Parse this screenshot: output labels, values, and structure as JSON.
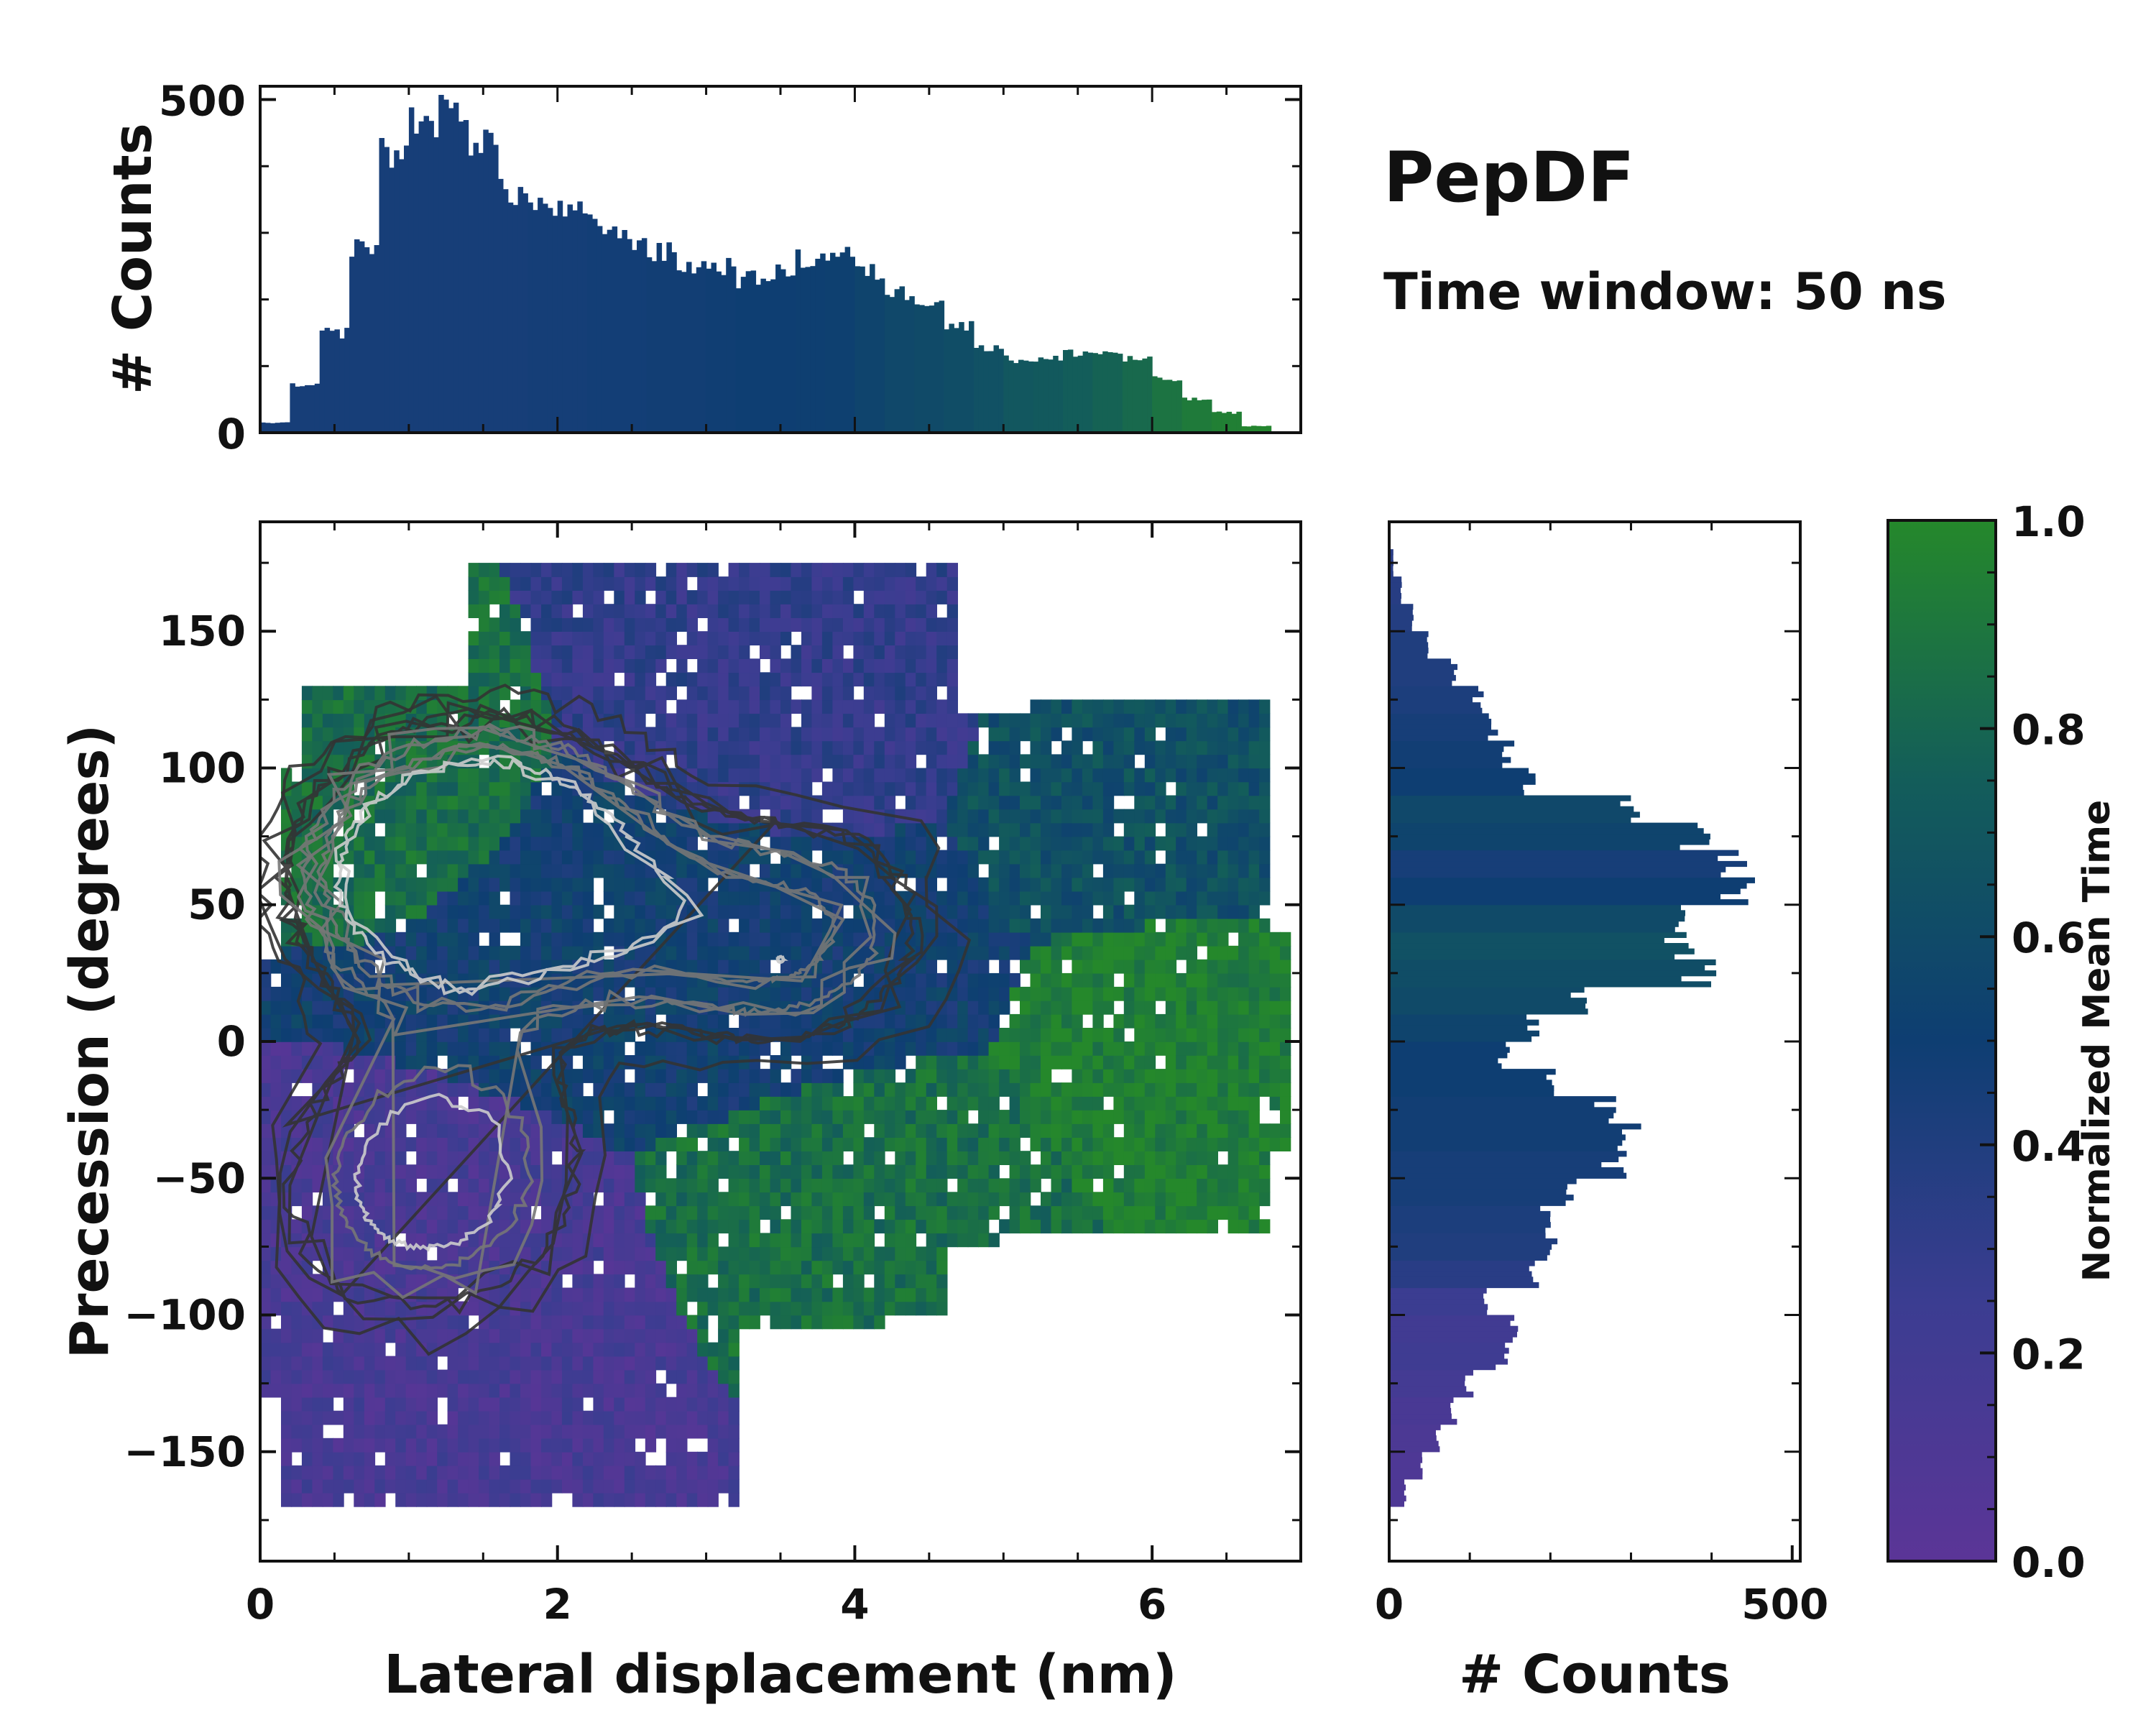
{
  "title": "PepDF",
  "subtitle": "Time window: 50 ns",
  "colors": {
    "cmap_low": "#5b3597",
    "cmap_mid_low": "#3b3d91",
    "cmap_mid": "#0e3e72",
    "cmap_mid_high": "#135d5a",
    "cmap_high": "#25882b",
    "contour_outer": "#000000",
    "contour_inner": "#cccccc"
  },
  "chart_data": [
    {
      "id": "main_heatmap",
      "type": "heatmap",
      "xlabel": "Lateral displacement (nm)",
      "ylabel": "Precession (degrees)",
      "xlim": [
        0,
        7
      ],
      "ylim": [
        -190,
        190
      ],
      "x_ticks": [
        0,
        2,
        4,
        6
      ],
      "x_tick_labels": [
        "0",
        "2",
        "4",
        "6"
      ],
      "y_ticks": [
        -150,
        -100,
        -50,
        0,
        50,
        100,
        150
      ],
      "y_tick_labels": [
        "−150",
        "−100",
        "−50",
        "0",
        "50",
        "100",
        "150"
      ],
      "density_peaks": [
        {
          "x": 1.0,
          "y": 60,
          "weight": 1.0
        },
        {
          "x": 1.5,
          "y": 60,
          "weight": 0.9
        },
        {
          "x": 1.8,
          "y": 75,
          "weight": 0.7
        },
        {
          "x": 1.3,
          "y": -40,
          "weight": 0.85
        },
        {
          "x": 1.0,
          "y": -60,
          "weight": 0.8
        },
        {
          "x": 2.7,
          "y": 45,
          "weight": 0.6
        },
        {
          "x": 3.5,
          "y": 30,
          "weight": 0.5
        },
        {
          "x": 4.0,
          "y": 50,
          "weight": 0.45
        }
      ],
      "regions": [
        {
          "name": "upper-left green",
          "x": [
            0.2,
            1.5
          ],
          "y": [
            60,
            130
          ],
          "normalized_time": 0.85
        },
        {
          "name": "central blue",
          "x": [
            1.0,
            4.8
          ],
          "y": [
            -20,
            80
          ],
          "normalized_time": 0.5
        },
        {
          "name": "top purple",
          "x": [
            2.5,
            4.5
          ],
          "y": [
            80,
            170
          ],
          "normalized_time": 0.3
        },
        {
          "name": "lower-left purple",
          "x": [
            0.0,
            2.5
          ],
          "y": [
            -170,
            -30
          ],
          "normalized_time": 0.15
        },
        {
          "name": "lower-middle green",
          "x": [
            2.8,
            5.5
          ],
          "y": [
            -100,
            -20
          ],
          "normalized_time": 0.85
        },
        {
          "name": "right green",
          "x": [
            5.3,
            6.9
          ],
          "y": [
            -60,
            40
          ],
          "normalized_time": 0.95
        },
        {
          "name": "upper-right teal",
          "x": [
            5.0,
            6.8
          ],
          "y": [
            50,
            120
          ],
          "normalized_time": 0.65
        }
      ]
    },
    {
      "id": "top_histogram",
      "type": "bar",
      "xlabel": "",
      "ylabel": "# Counts",
      "xlim": [
        0,
        7
      ],
      "ylim": [
        0,
        520
      ],
      "y_ticks": [
        0,
        500
      ],
      "y_tick_labels": [
        "0",
        "500"
      ],
      "x": [
        0.1,
        0.3,
        0.5,
        0.7,
        0.9,
        1.1,
        1.3,
        1.5,
        1.7,
        1.9,
        2.1,
        2.3,
        2.5,
        2.7,
        2.9,
        3.1,
        3.3,
        3.5,
        3.7,
        3.9,
        4.1,
        4.3,
        4.5,
        4.7,
        4.9,
        5.1,
        5.3,
        5.5,
        5.7,
        5.9,
        6.1,
        6.3,
        6.5,
        6.7
      ],
      "values": [
        15,
        70,
        150,
        280,
        420,
        470,
        480,
        440,
        360,
        340,
        330,
        310,
        290,
        270,
        250,
        250,
        230,
        240,
        260,
        270,
        240,
        210,
        200,
        160,
        130,
        110,
        110,
        120,
        120,
        110,
        80,
        50,
        30,
        10
      ],
      "normalized_time": [
        0.45,
        0.45,
        0.45,
        0.45,
        0.45,
        0.45,
        0.45,
        0.45,
        0.45,
        0.46,
        0.46,
        0.47,
        0.47,
        0.48,
        0.48,
        0.49,
        0.5,
        0.5,
        0.51,
        0.52,
        0.55,
        0.58,
        0.6,
        0.62,
        0.65,
        0.7,
        0.72,
        0.75,
        0.78,
        0.82,
        0.88,
        0.92,
        0.95,
        0.98
      ]
    },
    {
      "id": "right_histogram",
      "type": "bar",
      "orientation": "horizontal",
      "xlabel": "# Counts",
      "ylabel": "",
      "xlim": [
        0,
        510
      ],
      "ylim": [
        -190,
        190
      ],
      "x_ticks": [
        0,
        500
      ],
      "x_tick_labels": [
        "0",
        "500"
      ],
      "y": [
        -165,
        -155,
        -145,
        -135,
        -125,
        -115,
        -105,
        -95,
        -85,
        -75,
        -65,
        -55,
        -45,
        -35,
        -25,
        -15,
        -5,
        5,
        15,
        25,
        35,
        45,
        55,
        65,
        75,
        85,
        95,
        105,
        115,
        125,
        135,
        145,
        155,
        165,
        175
      ],
      "values": [
        20,
        40,
        60,
        80,
        100,
        140,
        150,
        120,
        180,
        200,
        190,
        230,
        280,
        300,
        270,
        200,
        140,
        180,
        240,
        380,
        360,
        380,
        440,
        420,
        380,
        300,
        170,
        150,
        130,
        110,
        80,
        50,
        30,
        15,
        5
      ],
      "normalized_time": [
        0.1,
        0.1,
        0.12,
        0.14,
        0.18,
        0.22,
        0.2,
        0.25,
        0.35,
        0.4,
        0.42,
        0.45,
        0.45,
        0.48,
        0.48,
        0.5,
        0.5,
        0.55,
        0.6,
        0.62,
        0.65,
        0.6,
        0.5,
        0.45,
        0.55,
        0.58,
        0.5,
        0.48,
        0.45,
        0.42,
        0.4,
        0.4,
        0.38,
        0.36,
        0.35
      ]
    },
    {
      "id": "colorbar",
      "type": "colorbar",
      "label": "Normalized Mean Time",
      "ylim": [
        0,
        1
      ],
      "ticks": [
        0.0,
        0.2,
        0.4,
        0.6,
        0.8,
        1.0
      ],
      "tick_labels": [
        "0.0",
        "0.2",
        "0.4",
        "0.6",
        "0.8",
        "1.0"
      ]
    }
  ]
}
